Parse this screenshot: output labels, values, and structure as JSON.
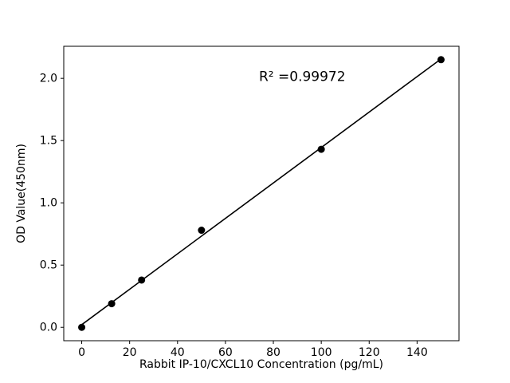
{
  "chart_data": {
    "type": "scatter",
    "title": "",
    "xlabel": "Rabbit IP-10/CXCL10 Concentration (pg/mL)",
    "ylabel": "OD Value(450nm)",
    "x": [
      0,
      12.5,
      25,
      50,
      100,
      150
    ],
    "y": [
      0.0,
      0.19,
      0.38,
      0.78,
      1.43,
      2.15
    ],
    "xlim": [
      -7.5,
      157.5
    ],
    "ylim": [
      -0.1075,
      2.2575
    ],
    "xticks": [
      0,
      20,
      40,
      60,
      80,
      100,
      120,
      140
    ],
    "yticks": [
      0.0,
      0.5,
      1.0,
      1.5,
      2.0
    ],
    "annotation": {
      "text": "R² =0.99972",
      "x": 74,
      "y": 1.98
    },
    "marker_color": "#000000",
    "line_color": "#000000",
    "background_color": "#ffffff",
    "grid": false,
    "legend": "none",
    "fit": "linear"
  }
}
